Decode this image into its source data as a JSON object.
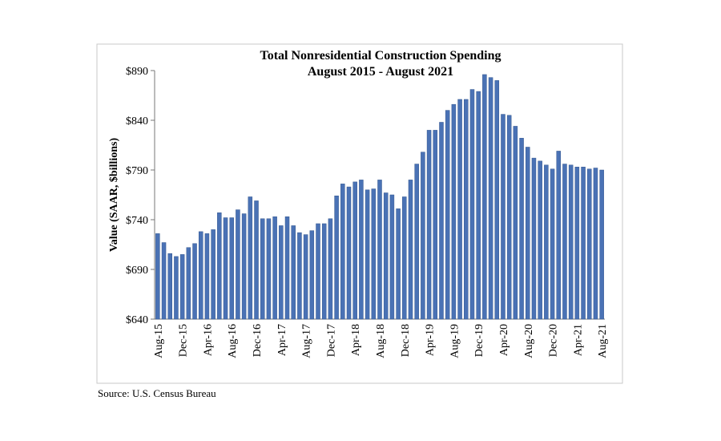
{
  "chart_data": {
    "type": "bar",
    "title": "Total Nonresidential Construction Spending",
    "subtitle": "August 2015 - August 2021",
    "y_label": "Value (SAAR, $billions)",
    "source": "Source:  U.S. Census Bureau",
    "color": "#4a72b5",
    "categories": [
      "Aug-15",
      null,
      null,
      null,
      "Dec-15",
      null,
      null,
      null,
      "Apr-16",
      null,
      null,
      null,
      "Aug-16",
      null,
      null,
      null,
      "Dec-16",
      null,
      null,
      null,
      "Apr-17",
      null,
      null,
      null,
      "Aug-17",
      null,
      null,
      null,
      "Dec-17",
      null,
      null,
      null,
      "Apr-18",
      null,
      null,
      null,
      "Aug-18",
      null,
      null,
      null,
      "Dec-18",
      null,
      null,
      null,
      "Apr-19",
      null,
      null,
      null,
      "Aug-19",
      null,
      null,
      null,
      "Dec-19",
      null,
      null,
      null,
      "Apr-20",
      null,
      null,
      null,
      "Aug-20",
      null,
      null,
      null,
      "Dec-20",
      null,
      null,
      null,
      "Apr-21",
      null,
      null,
      null,
      "Aug-21"
    ],
    "values": [
      726,
      717,
      706,
      703,
      705,
      712,
      716,
      728,
      726,
      730,
      747,
      742,
      742,
      750,
      746,
      763,
      759,
      741,
      741,
      743,
      734,
      743,
      734,
      727,
      725,
      729,
      736,
      736,
      741,
      764,
      776,
      773,
      778,
      780,
      770,
      771,
      780,
      767,
      765,
      751,
      763,
      780,
      796,
      808,
      830,
      830,
      838,
      850,
      856,
      861,
      861,
      871,
      869,
      886,
      883,
      880,
      846,
      845,
      834,
      822,
      813,
      802,
      799,
      795,
      791,
      809,
      796,
      795,
      793,
      793,
      791,
      792,
      790
    ],
    "ylim": [
      640,
      890
    ],
    "yticks": [
      {
        "value": 640,
        "label": "$640"
      },
      {
        "value": 690,
        "label": "$690"
      },
      {
        "value": 740,
        "label": "$740"
      },
      {
        "value": 790,
        "label": "$790"
      },
      {
        "value": 840,
        "label": "$840"
      },
      {
        "value": 890,
        "label": "$890"
      }
    ],
    "grid": false
  }
}
